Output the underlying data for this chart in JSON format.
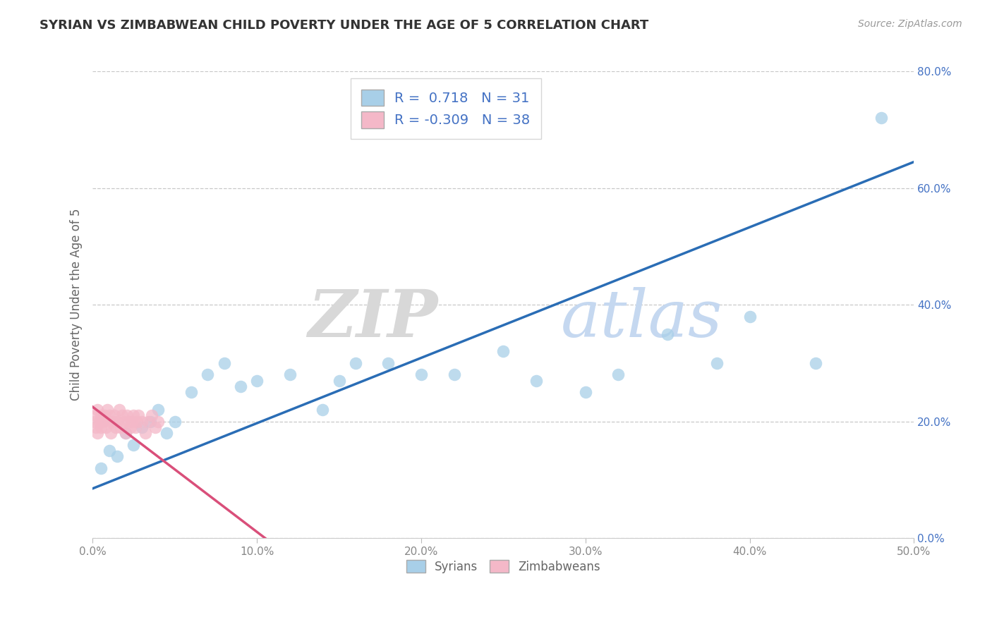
{
  "title": "SYRIAN VS ZIMBABWEAN CHILD POVERTY UNDER THE AGE OF 5 CORRELATION CHART",
  "source": "Source: ZipAtlas.com",
  "xlabel_syrians": "Syrians",
  "xlabel_zimbabweans": "Zimbabweans",
  "ylabel": "Child Poverty Under the Age of 5",
  "xlim": [
    0,
    0.5
  ],
  "ylim": [
    0,
    0.8
  ],
  "xticks": [
    0.0,
    0.1,
    0.2,
    0.3,
    0.4,
    0.5
  ],
  "yticks": [
    0.0,
    0.2,
    0.4,
    0.6,
    0.8
  ],
  "xticklabels": [
    "0.0%",
    "10.0%",
    "20.0%",
    "30.0%",
    "40.0%",
    "50.0%"
  ],
  "yticklabels": [
    "0.0%",
    "20.0%",
    "40.0%",
    "60.0%",
    "80.0%"
  ],
  "syrian_color": "#a8cfe8",
  "zimbabwean_color": "#f4b8c8",
  "syrian_line_color": "#2a6db5",
  "zimbabwean_line_color": "#d94f7a",
  "syrian_R": 0.718,
  "syrian_N": 31,
  "zimbabwean_R": -0.309,
  "zimbabwean_N": 38,
  "syrian_scatter_x": [
    0.005,
    0.01,
    0.015,
    0.02,
    0.025,
    0.03,
    0.035,
    0.04,
    0.045,
    0.05,
    0.06,
    0.07,
    0.08,
    0.09,
    0.1,
    0.12,
    0.14,
    0.15,
    0.16,
    0.18,
    0.2,
    0.22,
    0.25,
    0.27,
    0.3,
    0.32,
    0.35,
    0.38,
    0.4,
    0.44,
    0.48
  ],
  "syrian_scatter_y": [
    0.12,
    0.15,
    0.14,
    0.18,
    0.16,
    0.19,
    0.2,
    0.22,
    0.18,
    0.2,
    0.25,
    0.28,
    0.3,
    0.26,
    0.27,
    0.28,
    0.22,
    0.27,
    0.3,
    0.3,
    0.28,
    0.28,
    0.32,
    0.27,
    0.25,
    0.28,
    0.35,
    0.3,
    0.38,
    0.3,
    0.72
  ],
  "zimbabwean_scatter_x": [
    0.001,
    0.002,
    0.002,
    0.003,
    0.003,
    0.004,
    0.005,
    0.005,
    0.006,
    0.007,
    0.008,
    0.009,
    0.01,
    0.01,
    0.011,
    0.012,
    0.013,
    0.014,
    0.015,
    0.016,
    0.017,
    0.018,
    0.019,
    0.02,
    0.021,
    0.022,
    0.023,
    0.024,
    0.025,
    0.026,
    0.027,
    0.028,
    0.03,
    0.032,
    0.034,
    0.036,
    0.038,
    0.04
  ],
  "zimbabwean_scatter_y": [
    0.2,
    0.19,
    0.21,
    0.18,
    0.22,
    0.2,
    0.21,
    0.19,
    0.2,
    0.21,
    0.19,
    0.22,
    0.2,
    0.21,
    0.18,
    0.2,
    0.21,
    0.19,
    0.2,
    0.22,
    0.19,
    0.21,
    0.2,
    0.18,
    0.21,
    0.2,
    0.19,
    0.2,
    0.21,
    0.19,
    0.2,
    0.21,
    0.2,
    0.18,
    0.2,
    0.21,
    0.19,
    0.2
  ],
  "watermark_zip": "ZIP",
  "watermark_atlas": "atlas",
  "background_color": "#ffffff",
  "grid_color": "#c8c8c8",
  "ytick_color": "#4472c4",
  "xtick_color": "#888888"
}
